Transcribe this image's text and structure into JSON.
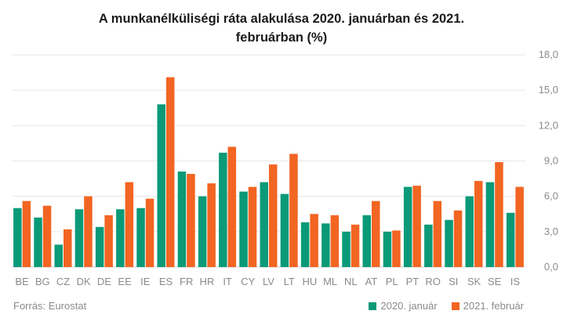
{
  "chart_data": {
    "type": "bar",
    "title_line1": "A munkanélküliségi ráta alakulása 2020. januárban és 2021.",
    "title_line2": "februárban (%)",
    "categories": [
      "BE",
      "BG",
      "CZ",
      "DK",
      "DE",
      "EE",
      "IE",
      "ES",
      "FR",
      "HR",
      "IT",
      "CY",
      "LV",
      "LT",
      "HU",
      "ML",
      "NL",
      "AT",
      "PL",
      "PT",
      "RO",
      "SI",
      "SK",
      "SE",
      "IS"
    ],
    "series": [
      {
        "name": "2020. január",
        "color": "#0a9a78",
        "values": [
          5.0,
          4.2,
          1.9,
          4.9,
          3.4,
          4.9,
          5.0,
          13.8,
          8.1,
          6.0,
          9.7,
          6.4,
          7.2,
          6.2,
          3.8,
          3.7,
          3.0,
          4.4,
          3.0,
          6.8,
          3.6,
          4.0,
          6.0,
          7.2,
          4.6
        ]
      },
      {
        "name": "2021. február",
        "color": "#f26522",
        "values": [
          5.6,
          5.2,
          3.2,
          6.0,
          4.4,
          7.2,
          5.8,
          16.1,
          7.9,
          7.1,
          10.2,
          6.8,
          8.7,
          9.6,
          4.5,
          4.4,
          3.6,
          5.6,
          3.1,
          6.9,
          5.6,
          4.8,
          7.3,
          8.9,
          6.8
        ]
      }
    ],
    "y_ticks": [
      "0,0",
      "3,0",
      "6,0",
      "9,0",
      "12,0",
      "15,0",
      "18,0"
    ],
    "ylim": [
      0,
      18
    ],
    "y_axis_position": "right",
    "grid": true,
    "legend_position": "bottom-right",
    "source": "Forrás: Eurostat"
  }
}
